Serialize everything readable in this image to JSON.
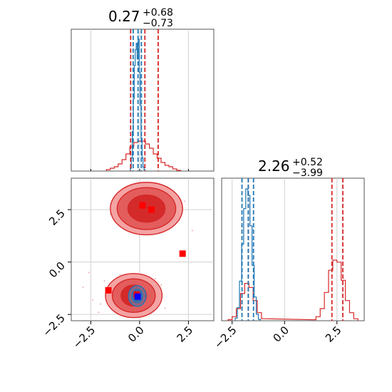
{
  "colors": {
    "red": "#d62728",
    "blue": "#1f77b4",
    "marker_red": "#ff0000",
    "marker_blue": "#0000ff"
  },
  "chart_data": [
    {
      "type": "histogram",
      "panel": "top-left: marginal of parameter 1",
      "title": {
        "value": "0.27",
        "upper": "+0.68",
        "lower": "−0.73"
      },
      "xlim": [
        -3.5,
        3.8
      ],
      "grid": true,
      "series": [
        {
          "color": "red",
          "vlines": [
            -0.46,
            0.27,
            0.95
          ],
          "bins_center": [
            -1.6,
            -1.4,
            -1.2,
            -1.0,
            -0.8,
            -0.6,
            -0.4,
            -0.2,
            0.0,
            0.2,
            0.4,
            0.6,
            0.8,
            1.0,
            1.2,
            1.4,
            1.6,
            1.8,
            2.0
          ],
          "counts": [
            0.01,
            0.02,
            0.03,
            0.05,
            0.08,
            0.12,
            0.17,
            0.2,
            0.21,
            0.21,
            0.19,
            0.16,
            0.12,
            0.09,
            0.06,
            0.04,
            0.03,
            0.015,
            0.005
          ]
        },
        {
          "color": "blue",
          "vlines": [
            -0.33,
            -0.08,
            0.09
          ],
          "bins_center": [
            -0.45,
            -0.4,
            -0.35,
            -0.3,
            -0.25,
            -0.2,
            -0.15,
            -0.1,
            -0.05,
            0.0,
            0.05,
            0.1,
            0.15,
            0.2,
            0.25
          ],
          "counts": [
            0.02,
            0.1,
            0.3,
            0.55,
            0.8,
            0.92,
            0.97,
            0.85,
            1.0,
            0.75,
            0.5,
            0.25,
            0.1,
            0.03,
            0.01
          ]
        }
      ]
    },
    {
      "type": "histogram",
      "panel": "bottom-right: marginal of parameter 2",
      "title": {
        "value": "2.26",
        "upper": "+0.52",
        "lower": "−3.99"
      },
      "xlim": [
        -3.0,
        3.8
      ],
      "xticks": [
        "−2.5",
        "0.0",
        "2.5"
      ],
      "grid": true,
      "series": [
        {
          "color": "red",
          "vlines": [
            -1.73,
            2.26,
            2.78
          ],
          "bins_center": [
            -2.6,
            -2.4,
            -2.2,
            -2.0,
            -1.8,
            -1.6,
            -1.4,
            -1.2,
            -1.0,
            1.4,
            1.6,
            1.8,
            2.0,
            2.2,
            2.4,
            2.6,
            2.8,
            3.0,
            3.2,
            3.4
          ],
          "counts": [
            0.01,
            0.04,
            0.12,
            0.27,
            0.37,
            0.33,
            0.2,
            0.08,
            0.02,
            0.01,
            0.04,
            0.12,
            0.28,
            0.5,
            0.6,
            0.58,
            0.4,
            0.2,
            0.08,
            0.02
          ]
        },
        {
          "color": "blue",
          "vlines": [
            -2.03,
            -1.73,
            -1.48
          ],
          "bins_center": [
            -2.3,
            -2.2,
            -2.1,
            -2.0,
            -1.9,
            -1.8,
            -1.7,
            -1.6,
            -1.5,
            -1.4,
            -1.3,
            -1.2
          ],
          "counts": [
            0.02,
            0.1,
            0.3,
            0.58,
            0.85,
            1.0,
            0.95,
            0.72,
            0.42,
            0.18,
            0.05,
            0.01
          ]
        }
      ]
    },
    {
      "type": "contour",
      "panel": "bottom-left: joint of parameter 1 (x) vs parameter 2 (y)",
      "xlim": [
        -3.5,
        3.8
      ],
      "ylim": [
        -2.8,
        4.0
      ],
      "xticks": [
        "−2.5",
        "0.0",
        "2.5"
      ],
      "yticks": [
        "−2.5",
        "0.0",
        "2.5"
      ],
      "grid": true,
      "red_modes": [
        {
          "cx": 0.35,
          "cy": 2.55,
          "rx": [
            1.85,
            1.5,
            0.95
          ],
          "ry": [
            1.25,
            1.0,
            0.65
          ]
        },
        {
          "cx": -0.3,
          "cy": -1.6,
          "rx": [
            1.45,
            1.1,
            0.65
          ],
          "ry": [
            1.05,
            0.8,
            0.5
          ]
        }
      ],
      "blue_mode": {
        "cx": -0.12,
        "cy": -1.62,
        "rx": [
          0.45,
          0.28
        ],
        "ry": [
          0.5,
          0.32
        ]
      },
      "red_squares": [
        [
          0.15,
          2.7
        ],
        [
          0.6,
          2.5
        ],
        [
          2.2,
          0.4
        ],
        [
          -1.6,
          -1.35
        ],
        [
          -0.15,
          -1.55
        ]
      ],
      "blue_square": [
        -0.1,
        -1.65
      ]
    }
  ]
}
